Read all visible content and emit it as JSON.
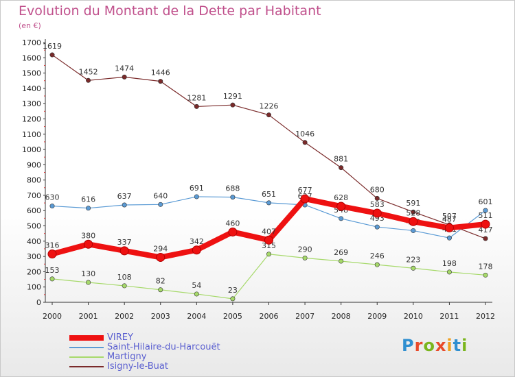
{
  "title": "Evolution du Montant de la Dette par Habitant",
  "unit": "(en €)",
  "logo": {
    "text": "Proxiti",
    "colors": [
      "#2f8fd0",
      "#e84a2a",
      "#7ab51d",
      "#e84a2a",
      "#f0a020",
      "#2f8fd0",
      "#7ab51d"
    ]
  },
  "chart_data": {
    "type": "line",
    "x": [
      2000,
      2001,
      2002,
      2003,
      2004,
      2005,
      2006,
      2007,
      2008,
      2009,
      2010,
      2011,
      2012
    ],
    "ylim": [
      0,
      1700
    ],
    "yticks": [
      0,
      100,
      200,
      300,
      400,
      500,
      600,
      700,
      800,
      900,
      1000,
      1100,
      1200,
      1300,
      1400,
      1500,
      1600,
      1700
    ],
    "grid": false,
    "legend_position": "bottom-left",
    "series": [
      {
        "name": "Isigny-le-Buat",
        "color": "#7a2a2a",
        "width": 1.2,
        "values": [
          1619,
          1452,
          1474,
          1446,
          1281,
          1291,
          1226,
          1046,
          881,
          680,
          591,
          507,
          417
        ]
      },
      {
        "name": "Saint-Hilaire-du-Harcouët",
        "color": "#5b9bd5",
        "width": 1.2,
        "values": [
          630,
          616,
          637,
          640,
          691,
          688,
          651,
          637,
          548,
          493,
          469,
          421,
          601
        ]
      },
      {
        "name": "Martigny",
        "color": "#a6d96a",
        "width": 1.2,
        "values": [
          153,
          130,
          108,
          82,
          54,
          23,
          315,
          290,
          269,
          246,
          223,
          198,
          178
        ]
      },
      {
        "name": "VIREY",
        "color": "#ee1111",
        "width": 8,
        "values": [
          316,
          380,
          337,
          294,
          342,
          460,
          407,
          677,
          628,
          583,
          528,
          487,
          511
        ]
      }
    ],
    "legend_order": [
      "VIREY",
      "Saint-Hilaire-du-Harcouët",
      "Martigny",
      "Isigny-le-Buat"
    ]
  }
}
